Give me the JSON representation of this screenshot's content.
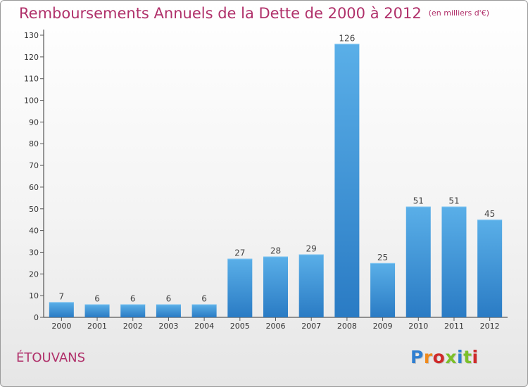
{
  "header": {
    "title": "Remboursements Annuels de la Dette de 2000 à 2012",
    "subtitle": "(en milliers d'€)"
  },
  "footer": {
    "commune": "ÉTOUVANS",
    "logo_text": "Proxiti",
    "logo_colors": [
      "#2f7fd1",
      "#f08a1c",
      "#cf2a2a",
      "#7cbf2a",
      "#2f7fd1",
      "#7cbf2a",
      "#cf2a2a"
    ]
  },
  "colors": {
    "bar_top": "#5aafe8",
    "bar_bottom": "#2a7bc4",
    "title": "#b0306a",
    "axis": "#333333",
    "grid_tick": "#555555"
  },
  "chart_data": {
    "type": "bar",
    "title": "Remboursements Annuels de la Dette de 2000 à 2012",
    "subtitle": "(en milliers d'€)",
    "xlabel": "",
    "ylabel": "",
    "categories": [
      "2000",
      "2001",
      "2002",
      "2003",
      "2004",
      "2005",
      "2006",
      "2007",
      "2008",
      "2009",
      "2010",
      "2011",
      "2012"
    ],
    "values": [
      7,
      6,
      6,
      6,
      6,
      27,
      28,
      29,
      126,
      25,
      51,
      51,
      45
    ],
    "ylim": [
      0,
      130
    ],
    "yticks": [
      0,
      10,
      20,
      30,
      40,
      50,
      60,
      70,
      80,
      90,
      100,
      110,
      120,
      130
    ],
    "grid": false,
    "data_labels": true
  }
}
